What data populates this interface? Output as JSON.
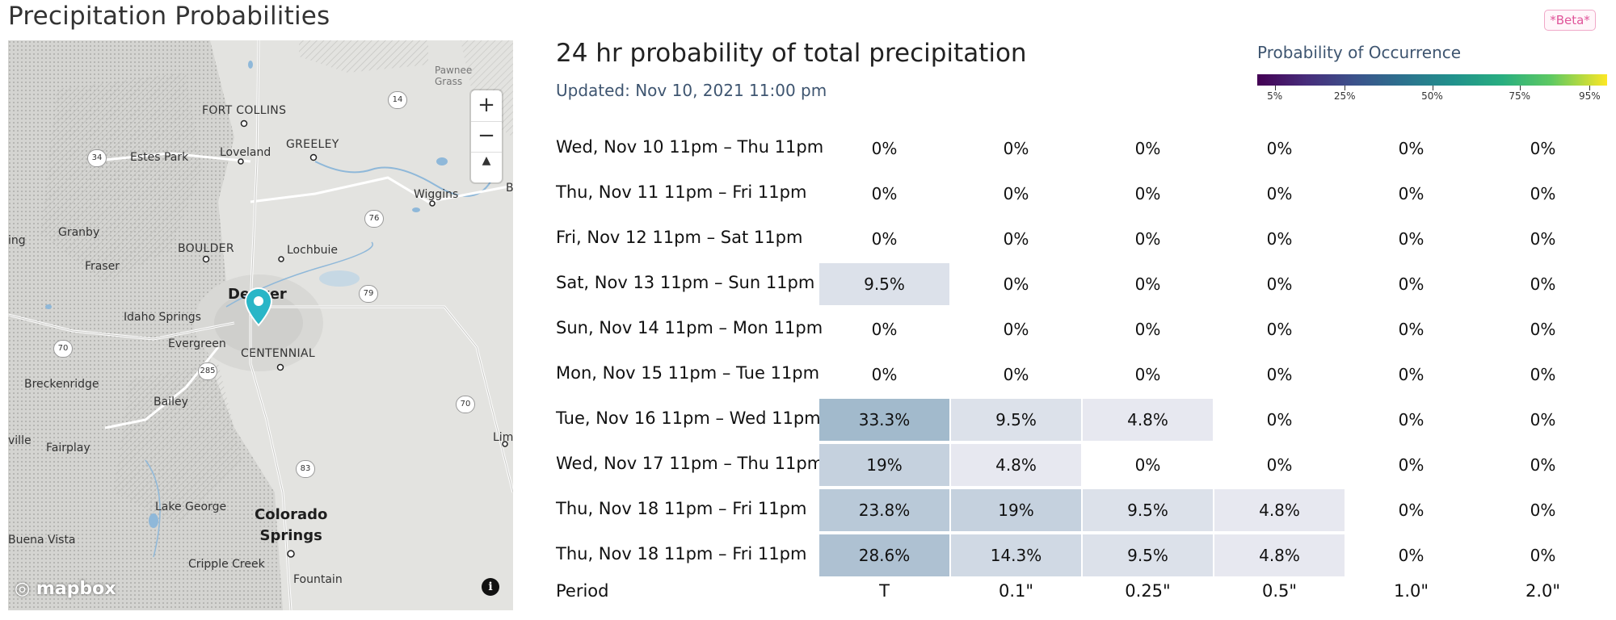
{
  "page": {
    "title": "Precipitation Probabilities",
    "beta_badge": "*Beta*"
  },
  "map": {
    "labels": {
      "fort_collins": "FORT COLLINS",
      "greeley": "GREELEY",
      "loveland": "Loveland",
      "estes_park": "Estes Park",
      "wiggins": "Wiggins",
      "granby": "Granby",
      "boulder": "BOULDER",
      "lochbuie": "Lochbuie",
      "fraser": "Fraser",
      "denver": "Denver",
      "idaho_springs": "Idaho Springs",
      "evergreen": "Evergreen",
      "centennial": "CENTENNIAL",
      "breckenridge": "Breckenridge",
      "bailey": "Bailey",
      "fairplay": "Fairplay",
      "lake_george": "Lake George",
      "colorado_springs": "Colorado\nSprings",
      "buena_vista": "Buena Vista",
      "cripple_creek": "Cripple Creek",
      "fountain": "Fountain",
      "pawnee": "Pawnee\nGrass",
      "edge_ing": "ing",
      "edge_ville": "ville",
      "edge_b": "B",
      "edge_lim": "Lim"
    },
    "routes": [
      "14",
      "34",
      "76",
      "79",
      "70",
      "285",
      "70",
      "83"
    ],
    "attribution": "mapbox",
    "info_glyph": "i",
    "zoom_in": "+",
    "zoom_out": "−",
    "compass": "▲"
  },
  "forecast": {
    "title": "24 hr probability of total precipitation",
    "updated": "Updated: Nov 10, 2021 11:00 pm",
    "legend": {
      "title": "Probability of Occurrence",
      "ticks": [
        "5%",
        "25%",
        "50%",
        "75%",
        "95%"
      ],
      "tick_values": [
        5,
        25,
        50,
        75,
        95
      ],
      "colors": [
        "#440154",
        "#3b528b",
        "#21918c",
        "#5ec962",
        "#fde725"
      ]
    },
    "table": {
      "period_label": "Period",
      "thresholds": [
        "T",
        "0.1\"",
        "0.25\"",
        "0.5\"",
        "1.0\"",
        "2.0\""
      ],
      "rows": [
        {
          "period": "Wed, Nov 10 11pm – Thu 11pm",
          "values": [
            "0%",
            "0%",
            "0%",
            "0%",
            "0%",
            "0%"
          ],
          "pct": [
            0,
            0,
            0,
            0,
            0,
            0
          ]
        },
        {
          "period": "Thu, Nov 11 11pm – Fri 11pm",
          "values": [
            "0%",
            "0%",
            "0%",
            "0%",
            "0%",
            "0%"
          ],
          "pct": [
            0,
            0,
            0,
            0,
            0,
            0
          ]
        },
        {
          "period": "Fri, Nov 12 11pm – Sat 11pm",
          "values": [
            "0%",
            "0%",
            "0%",
            "0%",
            "0%",
            "0%"
          ],
          "pct": [
            0,
            0,
            0,
            0,
            0,
            0
          ]
        },
        {
          "period": "Sat, Nov 13 11pm – Sun 11pm",
          "values": [
            "9.5%",
            "0%",
            "0%",
            "0%",
            "0%",
            "0%"
          ],
          "pct": [
            9.5,
            0,
            0,
            0,
            0,
            0
          ]
        },
        {
          "period": "Sun, Nov 14 11pm – Mon 11pm",
          "values": [
            "0%",
            "0%",
            "0%",
            "0%",
            "0%",
            "0%"
          ],
          "pct": [
            0,
            0,
            0,
            0,
            0,
            0
          ]
        },
        {
          "period": "Mon, Nov 15 11pm – Tue 11pm",
          "values": [
            "0%",
            "0%",
            "0%",
            "0%",
            "0%",
            "0%"
          ],
          "pct": [
            0,
            0,
            0,
            0,
            0,
            0
          ]
        },
        {
          "period": "Tue, Nov 16 11pm – Wed 11pm",
          "values": [
            "33.3%",
            "9.5%",
            "4.8%",
            "0%",
            "0%",
            "0%"
          ],
          "pct": [
            33.3,
            9.5,
            4.8,
            0,
            0,
            0
          ]
        },
        {
          "period": "Wed, Nov 17 11pm – Thu 11pm",
          "values": [
            "19%",
            "4.8%",
            "0%",
            "0%",
            "0%",
            "0%"
          ],
          "pct": [
            19,
            4.8,
            0,
            0,
            0,
            0
          ]
        },
        {
          "period": "Thu, Nov 18 11pm – Fri 11pm",
          "values": [
            "23.8%",
            "19%",
            "9.5%",
            "4.8%",
            "0%",
            "0%"
          ],
          "pct": [
            23.8,
            19,
            9.5,
            4.8,
            0,
            0
          ]
        },
        {
          "period": "Thu, Nov 18 11pm – Fri 11pm",
          "values": [
            "28.6%",
            "14.3%",
            "9.5%",
            "4.8%",
            "0%",
            "0%"
          ],
          "pct": [
            28.6,
            14.3,
            9.5,
            4.8,
            0,
            0
          ]
        }
      ]
    }
  }
}
